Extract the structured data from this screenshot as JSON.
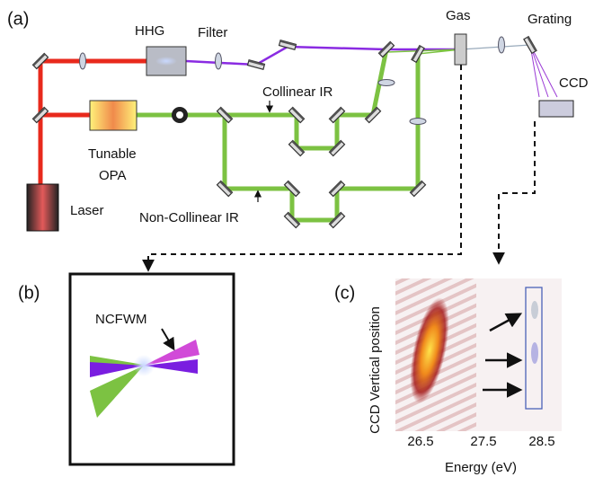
{
  "panel_a": {
    "label": "(a)",
    "hhg": "HHG",
    "filter": "Filter",
    "gas": "Gas",
    "grating": "Grating",
    "ccd": "CCD",
    "collinear_ir": "Collinear IR",
    "opa": [
      "Tunable",
      "OPA"
    ],
    "laser": "Laser",
    "non_collinear_ir": "Non-Collinear IR"
  },
  "panel_b": {
    "label": "(b)",
    "signal": "NCFWM"
  },
  "panel_c": {
    "label": "(c)",
    "y_label": "CCD Vertical position",
    "x_ticks": [
      26.5,
      27.5,
      28.5
    ],
    "x_label": "Energy (eV)"
  }
}
